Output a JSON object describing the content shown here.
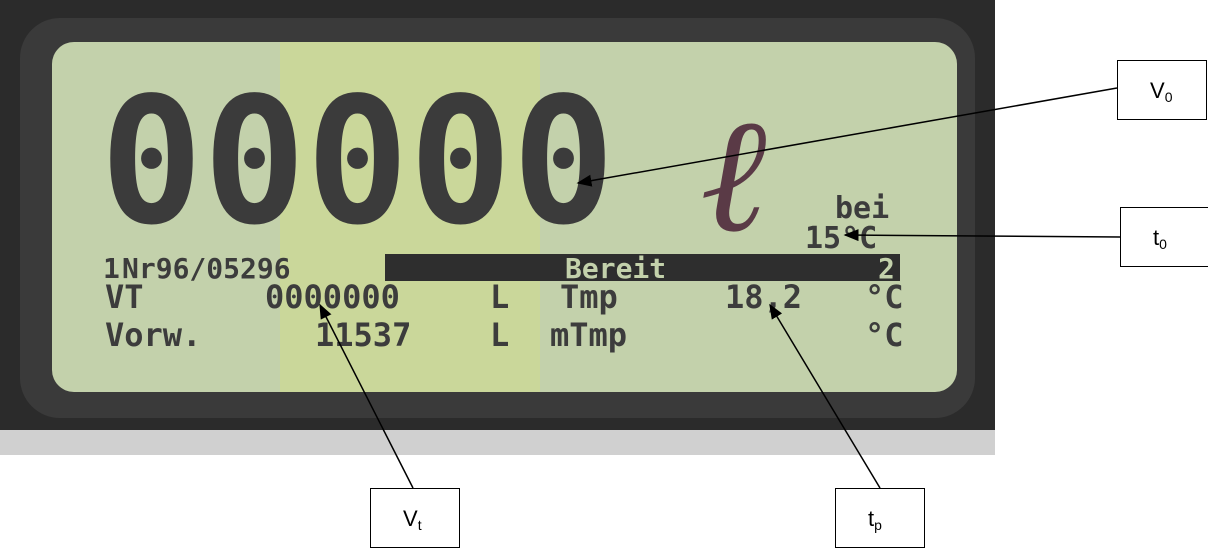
{
  "photo": {
    "big_digits": "00000",
    "unit": "ℓ",
    "bei": "bei",
    "ref_temp": "15°C",
    "status": {
      "left": "1",
      "id": "Nr96/05296",
      "state": "Bereit",
      "right": "2"
    },
    "rows": [
      [
        "VT",
        "0000000",
        "L",
        "Tmp",
        "18,2",
        "°C"
      ],
      [
        "Vorw.",
        "11537",
        "L",
        "mTmp",
        "°C"
      ]
    ]
  },
  "callouts": [
    {
      "main": "V",
      "sub": "0"
    },
    {
      "main": "t",
      "sub": "0"
    },
    {
      "main": "V",
      "sub": "t"
    },
    {
      "main": "t",
      "sub": "p"
    }
  ]
}
